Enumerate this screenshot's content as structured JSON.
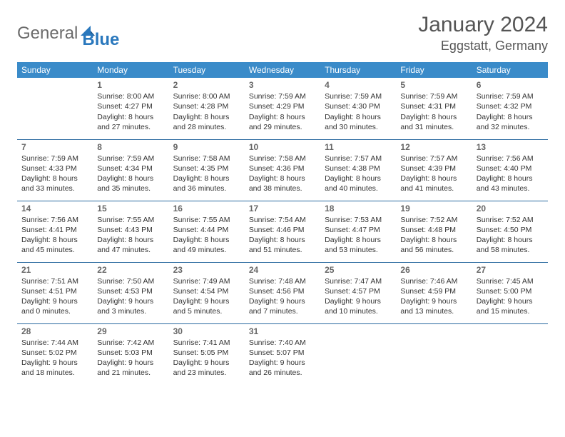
{
  "logo": {
    "part1": "General",
    "part2": "Blue"
  },
  "title": "January 2024",
  "location": "Eggstatt, Germany",
  "colors": {
    "header_bg": "#3a8bc9",
    "header_text": "#ffffff",
    "border": "#2a6aa0",
    "logo_gray": "#6b6b6b",
    "logo_blue": "#2a78bd"
  },
  "weekdays": [
    "Sunday",
    "Monday",
    "Tuesday",
    "Wednesday",
    "Thursday",
    "Friday",
    "Saturday"
  ],
  "weeks": [
    [
      null,
      {
        "day": "1",
        "sunrise": "Sunrise: 8:00 AM",
        "sunset": "Sunset: 4:27 PM",
        "dl1": "Daylight: 8 hours",
        "dl2": "and 27 minutes."
      },
      {
        "day": "2",
        "sunrise": "Sunrise: 8:00 AM",
        "sunset": "Sunset: 4:28 PM",
        "dl1": "Daylight: 8 hours",
        "dl2": "and 28 minutes."
      },
      {
        "day": "3",
        "sunrise": "Sunrise: 7:59 AM",
        "sunset": "Sunset: 4:29 PM",
        "dl1": "Daylight: 8 hours",
        "dl2": "and 29 minutes."
      },
      {
        "day": "4",
        "sunrise": "Sunrise: 7:59 AM",
        "sunset": "Sunset: 4:30 PM",
        "dl1": "Daylight: 8 hours",
        "dl2": "and 30 minutes."
      },
      {
        "day": "5",
        "sunrise": "Sunrise: 7:59 AM",
        "sunset": "Sunset: 4:31 PM",
        "dl1": "Daylight: 8 hours",
        "dl2": "and 31 minutes."
      },
      {
        "day": "6",
        "sunrise": "Sunrise: 7:59 AM",
        "sunset": "Sunset: 4:32 PM",
        "dl1": "Daylight: 8 hours",
        "dl2": "and 32 minutes."
      }
    ],
    [
      {
        "day": "7",
        "sunrise": "Sunrise: 7:59 AM",
        "sunset": "Sunset: 4:33 PM",
        "dl1": "Daylight: 8 hours",
        "dl2": "and 33 minutes."
      },
      {
        "day": "8",
        "sunrise": "Sunrise: 7:59 AM",
        "sunset": "Sunset: 4:34 PM",
        "dl1": "Daylight: 8 hours",
        "dl2": "and 35 minutes."
      },
      {
        "day": "9",
        "sunrise": "Sunrise: 7:58 AM",
        "sunset": "Sunset: 4:35 PM",
        "dl1": "Daylight: 8 hours",
        "dl2": "and 36 minutes."
      },
      {
        "day": "10",
        "sunrise": "Sunrise: 7:58 AM",
        "sunset": "Sunset: 4:36 PM",
        "dl1": "Daylight: 8 hours",
        "dl2": "and 38 minutes."
      },
      {
        "day": "11",
        "sunrise": "Sunrise: 7:57 AM",
        "sunset": "Sunset: 4:38 PM",
        "dl1": "Daylight: 8 hours",
        "dl2": "and 40 minutes."
      },
      {
        "day": "12",
        "sunrise": "Sunrise: 7:57 AM",
        "sunset": "Sunset: 4:39 PM",
        "dl1": "Daylight: 8 hours",
        "dl2": "and 41 minutes."
      },
      {
        "day": "13",
        "sunrise": "Sunrise: 7:56 AM",
        "sunset": "Sunset: 4:40 PM",
        "dl1": "Daylight: 8 hours",
        "dl2": "and 43 minutes."
      }
    ],
    [
      {
        "day": "14",
        "sunrise": "Sunrise: 7:56 AM",
        "sunset": "Sunset: 4:41 PM",
        "dl1": "Daylight: 8 hours",
        "dl2": "and 45 minutes."
      },
      {
        "day": "15",
        "sunrise": "Sunrise: 7:55 AM",
        "sunset": "Sunset: 4:43 PM",
        "dl1": "Daylight: 8 hours",
        "dl2": "and 47 minutes."
      },
      {
        "day": "16",
        "sunrise": "Sunrise: 7:55 AM",
        "sunset": "Sunset: 4:44 PM",
        "dl1": "Daylight: 8 hours",
        "dl2": "and 49 minutes."
      },
      {
        "day": "17",
        "sunrise": "Sunrise: 7:54 AM",
        "sunset": "Sunset: 4:46 PM",
        "dl1": "Daylight: 8 hours",
        "dl2": "and 51 minutes."
      },
      {
        "day": "18",
        "sunrise": "Sunrise: 7:53 AM",
        "sunset": "Sunset: 4:47 PM",
        "dl1": "Daylight: 8 hours",
        "dl2": "and 53 minutes."
      },
      {
        "day": "19",
        "sunrise": "Sunrise: 7:52 AM",
        "sunset": "Sunset: 4:48 PM",
        "dl1": "Daylight: 8 hours",
        "dl2": "and 56 minutes."
      },
      {
        "day": "20",
        "sunrise": "Sunrise: 7:52 AM",
        "sunset": "Sunset: 4:50 PM",
        "dl1": "Daylight: 8 hours",
        "dl2": "and 58 minutes."
      }
    ],
    [
      {
        "day": "21",
        "sunrise": "Sunrise: 7:51 AM",
        "sunset": "Sunset: 4:51 PM",
        "dl1": "Daylight: 9 hours",
        "dl2": "and 0 minutes."
      },
      {
        "day": "22",
        "sunrise": "Sunrise: 7:50 AM",
        "sunset": "Sunset: 4:53 PM",
        "dl1": "Daylight: 9 hours",
        "dl2": "and 3 minutes."
      },
      {
        "day": "23",
        "sunrise": "Sunrise: 7:49 AM",
        "sunset": "Sunset: 4:54 PM",
        "dl1": "Daylight: 9 hours",
        "dl2": "and 5 minutes."
      },
      {
        "day": "24",
        "sunrise": "Sunrise: 7:48 AM",
        "sunset": "Sunset: 4:56 PM",
        "dl1": "Daylight: 9 hours",
        "dl2": "and 7 minutes."
      },
      {
        "day": "25",
        "sunrise": "Sunrise: 7:47 AM",
        "sunset": "Sunset: 4:57 PM",
        "dl1": "Daylight: 9 hours",
        "dl2": "and 10 minutes."
      },
      {
        "day": "26",
        "sunrise": "Sunrise: 7:46 AM",
        "sunset": "Sunset: 4:59 PM",
        "dl1": "Daylight: 9 hours",
        "dl2": "and 13 minutes."
      },
      {
        "day": "27",
        "sunrise": "Sunrise: 7:45 AM",
        "sunset": "Sunset: 5:00 PM",
        "dl1": "Daylight: 9 hours",
        "dl2": "and 15 minutes."
      }
    ],
    [
      {
        "day": "28",
        "sunrise": "Sunrise: 7:44 AM",
        "sunset": "Sunset: 5:02 PM",
        "dl1": "Daylight: 9 hours",
        "dl2": "and 18 minutes."
      },
      {
        "day": "29",
        "sunrise": "Sunrise: 7:42 AM",
        "sunset": "Sunset: 5:03 PM",
        "dl1": "Daylight: 9 hours",
        "dl2": "and 21 minutes."
      },
      {
        "day": "30",
        "sunrise": "Sunrise: 7:41 AM",
        "sunset": "Sunset: 5:05 PM",
        "dl1": "Daylight: 9 hours",
        "dl2": "and 23 minutes."
      },
      {
        "day": "31",
        "sunrise": "Sunrise: 7:40 AM",
        "sunset": "Sunset: 5:07 PM",
        "dl1": "Daylight: 9 hours",
        "dl2": "and 26 minutes."
      },
      null,
      null,
      null
    ]
  ]
}
